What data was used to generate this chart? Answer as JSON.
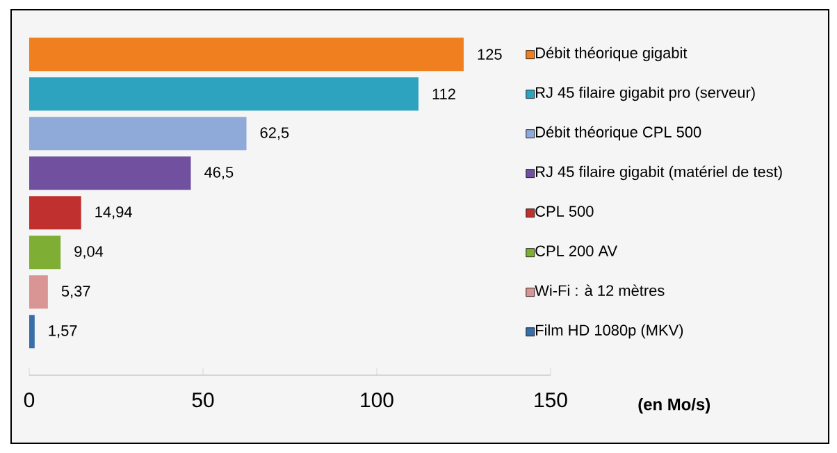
{
  "chart_data": {
    "type": "bar",
    "orientation": "horizontal",
    "stacked": true,
    "xlabel": "(en Mo/s)",
    "categories": [
      null,
      null,
      null,
      null,
      null,
      null,
      null,
      null
    ],
    "series": [
      {
        "name": "Débit théorique gigabit",
        "color": "#f07f1f",
        "values": [
          125,
          0,
          0,
          0,
          0,
          0,
          0,
          0
        ],
        "value_labels": [
          "125",
          null,
          null,
          null,
          null,
          null,
          null,
          null
        ]
      },
      {
        "name": "RJ 45 filaire gigabit pro (serveur)",
        "color": "#2ea3bf",
        "values": [
          0,
          112,
          0,
          0,
          0,
          0,
          0,
          0
        ],
        "value_labels": [
          null,
          "112",
          null,
          null,
          null,
          null,
          null,
          null
        ]
      },
      {
        "name": "Débit théorique CPL 500",
        "color": "#8faad8",
        "values": [
          0,
          0,
          62.5,
          0,
          0,
          0,
          0,
          0
        ],
        "value_labels": [
          null,
          null,
          "62,5",
          null,
          null,
          null,
          null,
          null
        ]
      },
      {
        "name": "RJ 45 filaire gigabit (matériel de test)",
        "color": "#7150a0",
        "values": [
          0,
          0,
          0,
          46.5,
          0,
          0,
          0,
          0
        ],
        "value_labels": [
          null,
          null,
          null,
          "46,5",
          null,
          null,
          null,
          null
        ]
      },
      {
        "name": "CPL 500",
        "color": "#c0302f",
        "values": [
          0,
          0,
          0,
          0,
          14.94,
          0,
          0,
          0
        ],
        "value_labels": [
          null,
          null,
          null,
          null,
          "14,94",
          null,
          null,
          null
        ]
      },
      {
        "name": "CPL 200 AV",
        "color": "#7fae35",
        "values": [
          0,
          0,
          0,
          0,
          0,
          9.04,
          0,
          0
        ],
        "value_labels": [
          null,
          null,
          null,
          null,
          null,
          "9,04",
          null,
          null
        ]
      },
      {
        "name": "Wi-Fi : à 12 mètres",
        "color": "#d99594",
        "values": [
          0,
          0,
          0,
          0,
          0,
          0,
          5.37,
          0
        ],
        "value_labels": [
          null,
          null,
          null,
          null,
          null,
          null,
          "5,37",
          null
        ]
      },
      {
        "name": "Film HD 1080p (MKV)",
        "color": "#3a6ea8",
        "values": [
          0,
          0,
          0,
          0,
          0,
          0,
          0,
          1.57
        ],
        "value_labels": [
          null,
          null,
          null,
          null,
          null,
          null,
          null,
          "1,57"
        ]
      }
    ],
    "xlim": [
      0,
      150
    ],
    "xticks": [
      0,
      50,
      100,
      150
    ],
    "legend": "right",
    "tick_labels": "x",
    "grid": false
  }
}
